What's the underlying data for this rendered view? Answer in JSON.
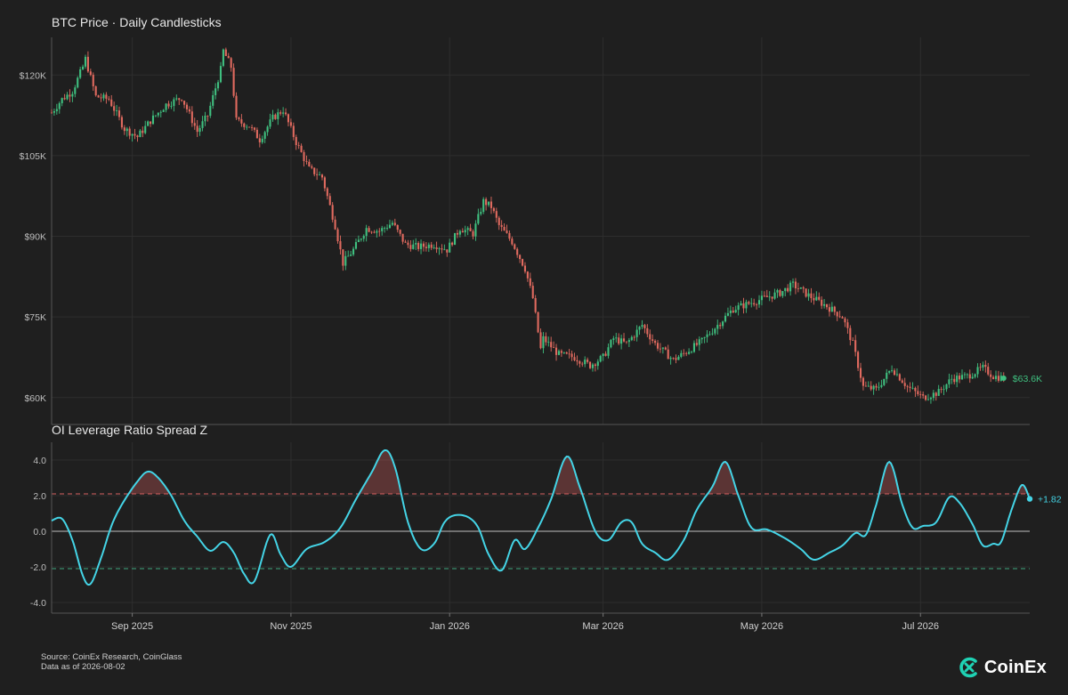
{
  "brand": {
    "name": "CoinEx",
    "accent": "#1fd2b4"
  },
  "colors": {
    "bg": "#1f1f1f",
    "up": "#3fbf7f",
    "down": "#e06a5f",
    "line": "#44d4e6",
    "grid": "#2e2e2e",
    "upper_band": "#d96060",
    "lower_band": "#3fa77f"
  },
  "footer": {
    "source": "Source: CoinEx Research, CoinGlass",
    "asof": "Data as of 2026-08-02"
  },
  "chart_data": [
    {
      "type": "candlestick",
      "title": "BTC Price · Daily Candlesticks",
      "ylabel": "",
      "ylim": [
        55000,
        127000
      ],
      "y_ticks": [
        60000,
        75000,
        90000,
        105000,
        120000
      ],
      "y_tick_labels": [
        "$60K",
        "$75K",
        "$90K",
        "$105K",
        "$120K"
      ],
      "x_range": [
        "2025-08-01",
        "2026-08-02"
      ],
      "x_ticks": [
        "2025-09-01",
        "2025-11-01",
        "2026-01-01",
        "2026-03-01",
        "2026-05-01",
        "2026-07-01"
      ],
      "x_tick_labels": [
        "Sep 2025",
        "Nov 2025",
        "Jan 2026",
        "Mar 2026",
        "May 2026",
        "Jul 2026"
      ],
      "close_path": [
        [
          "2025-08-01",
          113000
        ],
        [
          "2025-08-05",
          115500
        ],
        [
          "2025-08-09",
          117000
        ],
        [
          "2025-08-13",
          121500
        ],
        [
          "2025-08-14",
          123000
        ],
        [
          "2025-08-18",
          116000
        ],
        [
          "2025-08-23",
          115500
        ],
        [
          "2025-08-29",
          110000
        ],
        [
          "2025-09-03",
          108500
        ],
        [
          "2025-09-08",
          111500
        ],
        [
          "2025-09-14",
          114500
        ],
        [
          "2025-09-20",
          115800
        ],
        [
          "2025-09-26",
          109500
        ],
        [
          "2025-09-30",
          112500
        ],
        [
          "2025-10-05",
          121000
        ],
        [
          "2025-10-06",
          124500
        ],
        [
          "2025-10-09",
          121500
        ],
        [
          "2025-10-11",
          111500
        ],
        [
          "2025-10-16",
          110500
        ],
        [
          "2025-10-20",
          108000
        ],
        [
          "2025-10-25",
          112000
        ],
        [
          "2025-10-29",
          113500
        ],
        [
          "2025-11-03",
          107500
        ],
        [
          "2025-11-08",
          102500
        ],
        [
          "2025-11-13",
          101000
        ],
        [
          "2025-11-18",
          92000
        ],
        [
          "2025-11-21",
          85000
        ],
        [
          "2025-11-25",
          87500
        ],
        [
          "2025-11-30",
          91500
        ],
        [
          "2025-12-05",
          91000
        ],
        [
          "2025-12-10",
          92500
        ],
        [
          "2025-12-15",
          88500
        ],
        [
          "2025-12-20",
          88000
        ],
        [
          "2025-12-26",
          88500
        ],
        [
          "2025-12-31",
          87500
        ],
        [
          "2026-01-05",
          91500
        ],
        [
          "2026-01-10",
          90500
        ],
        [
          "2026-01-14",
          96500
        ],
        [
          "2026-01-17",
          95500
        ],
        [
          "2026-01-20",
          92000
        ],
        [
          "2026-01-25",
          89000
        ],
        [
          "2026-01-30",
          84000
        ],
        [
          "2026-02-02",
          78500
        ],
        [
          "2026-02-05",
          69000
        ],
        [
          "2026-02-06",
          71000
        ],
        [
          "2026-02-12",
          68000
        ],
        [
          "2026-02-18",
          67500
        ],
        [
          "2026-02-24",
          66000
        ],
        [
          "2026-03-01",
          67500
        ],
        [
          "2026-03-05",
          71000
        ],
        [
          "2026-03-10",
          70000
        ],
        [
          "2026-03-16",
          73500
        ],
        [
          "2026-03-21",
          70000
        ],
        [
          "2026-03-28",
          67000
        ],
        [
          "2026-04-02",
          68500
        ],
        [
          "2026-04-08",
          70500
        ],
        [
          "2026-04-14",
          73500
        ],
        [
          "2026-04-20",
          76500
        ],
        [
          "2026-04-26",
          77500
        ],
        [
          "2026-05-02",
          78500
        ],
        [
          "2026-05-08",
          79500
        ],
        [
          "2026-05-13",
          81000
        ],
        [
          "2026-05-19",
          79000
        ],
        [
          "2026-05-26",
          77000
        ],
        [
          "2026-06-01",
          75000
        ],
        [
          "2026-06-05",
          70000
        ],
        [
          "2026-06-09",
          62000
        ],
        [
          "2026-06-14",
          61500
        ],
        [
          "2026-06-20",
          65500
        ],
        [
          "2026-06-26",
          62000
        ],
        [
          "2026-07-02",
          60000
        ],
        [
          "2026-07-08",
          61000
        ],
        [
          "2026-07-13",
          63500
        ],
        [
          "2026-07-19",
          64000
        ],
        [
          "2026-07-25",
          65500
        ],
        [
          "2026-07-29",
          64000
        ],
        [
          "2026-08-02",
          63600
        ]
      ],
      "last_label": "$63.6K",
      "last_value": 63600
    },
    {
      "type": "line",
      "title": "OI Leverage Ratio Spread Z",
      "ylim": [
        -4.6,
        5.0
      ],
      "y_ticks": [
        -4,
        -2,
        0,
        2,
        4
      ],
      "y_tick_labels": [
        "-4.0",
        "-2.0",
        "0.0",
        "2.0",
        "4.0"
      ],
      "thresholds": {
        "upper": 2.1,
        "lower": -2.1
      },
      "series": [
        {
          "points": [
            [
              "2025-08-01",
              0.6
            ],
            [
              "2025-08-05",
              0.7
            ],
            [
              "2025-08-09",
              -0.5
            ],
            [
              "2025-08-13",
              -2.5
            ],
            [
              "2025-08-16",
              -2.95
            ],
            [
              "2025-08-20",
              -1.5
            ],
            [
              "2025-08-24",
              0.3
            ],
            [
              "2025-08-28",
              1.5
            ],
            [
              "2025-09-03",
              2.8
            ],
            [
              "2025-09-07",
              3.35
            ],
            [
              "2025-09-11",
              3.0
            ],
            [
              "2025-09-16",
              2.0
            ],
            [
              "2025-09-21",
              0.6
            ],
            [
              "2025-09-26",
              -0.3
            ],
            [
              "2025-10-01",
              -1.1
            ],
            [
              "2025-10-06",
              -0.6
            ],
            [
              "2025-10-10",
              -1.2
            ],
            [
              "2025-10-14",
              -2.4
            ],
            [
              "2025-10-18",
              -2.8
            ],
            [
              "2025-10-24",
              -0.2
            ],
            [
              "2025-10-28",
              -1.3
            ],
            [
              "2025-11-01",
              -2.0
            ],
            [
              "2025-11-07",
              -1.0
            ],
            [
              "2025-11-14",
              -0.6
            ],
            [
              "2025-11-20",
              0.2
            ],
            [
              "2025-11-26",
              1.8
            ],
            [
              "2025-12-02",
              3.3
            ],
            [
              "2025-12-07",
              4.55
            ],
            [
              "2025-12-11",
              3.6
            ],
            [
              "2025-12-16",
              0.5
            ],
            [
              "2025-12-21",
              -1.0
            ],
            [
              "2025-12-26",
              -0.7
            ],
            [
              "2025-12-30",
              0.5
            ],
            [
              "2026-01-03",
              0.9
            ],
            [
              "2026-01-08",
              0.8
            ],
            [
              "2026-01-12",
              0.2
            ],
            [
              "2026-01-16",
              -1.3
            ],
            [
              "2026-01-21",
              -2.2
            ],
            [
              "2026-01-26",
              -0.5
            ],
            [
              "2026-01-30",
              -1.0
            ],
            [
              "2026-02-04",
              0.2
            ],
            [
              "2026-02-09",
              1.8
            ],
            [
              "2026-02-15",
              4.2
            ],
            [
              "2026-02-20",
              2.5
            ],
            [
              "2026-02-26",
              0.0
            ],
            [
              "2026-03-03",
              -0.5
            ],
            [
              "2026-03-08",
              0.5
            ],
            [
              "2026-03-12",
              0.5
            ],
            [
              "2026-03-16",
              -0.7
            ],
            [
              "2026-03-21",
              -1.2
            ],
            [
              "2026-03-26",
              -1.6
            ],
            [
              "2026-04-01",
              -0.5
            ],
            [
              "2026-04-06",
              1.2
            ],
            [
              "2026-04-12",
              2.5
            ],
            [
              "2026-04-17",
              3.9
            ],
            [
              "2026-04-22",
              2.0
            ],
            [
              "2026-04-27",
              0.2
            ],
            [
              "2026-05-03",
              0.1
            ],
            [
              "2026-05-10",
              -0.4
            ],
            [
              "2026-05-16",
              -1.0
            ],
            [
              "2026-05-21",
              -1.6
            ],
            [
              "2026-05-27",
              -1.2
            ],
            [
              "2026-06-01",
              -0.8
            ],
            [
              "2026-06-06",
              -0.1
            ],
            [
              "2026-06-10",
              -0.2
            ],
            [
              "2026-06-14",
              1.5
            ],
            [
              "2026-06-19",
              3.9
            ],
            [
              "2026-06-24",
              1.5
            ],
            [
              "2026-06-28",
              0.2
            ],
            [
              "2026-07-02",
              0.3
            ],
            [
              "2026-07-07",
              0.5
            ],
            [
              "2026-07-12",
              1.9
            ],
            [
              "2026-07-16",
              1.6
            ],
            [
              "2026-07-21",
              0.4
            ],
            [
              "2026-07-25",
              -0.8
            ],
            [
              "2026-07-29",
              -0.7
            ],
            [
              "2026-08-01",
              -0.6
            ],
            [
              "2026-08-05",
              1.2
            ],
            [
              "2026-08-09",
              2.6
            ],
            [
              "2026-08-12",
              1.82
            ]
          ]
        }
      ],
      "last_label": "+1.82",
      "last_value": 1.82
    }
  ]
}
